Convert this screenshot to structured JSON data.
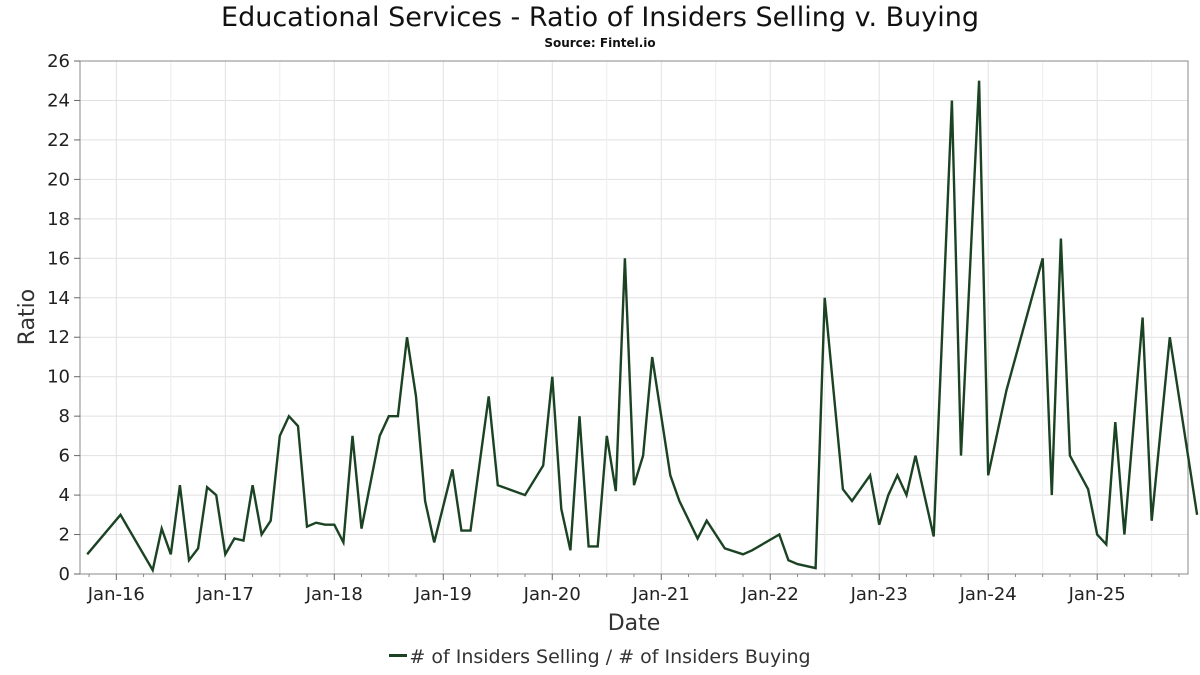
{
  "chart_data": {
    "type": "line",
    "title": "Educational Services - Ratio of Insiders Selling v. Buying",
    "subtitle": "Source: Fintel.io",
    "xlabel": "Date",
    "ylabel": "Ratio",
    "ylim": [
      0,
      26
    ],
    "xlim": [
      "2015-09",
      "2025-11"
    ],
    "y_ticks": [
      0,
      2,
      4,
      6,
      8,
      10,
      12,
      14,
      16,
      18,
      20,
      22,
      24,
      26
    ],
    "x_ticks": [
      {
        "label": "Jan-16",
        "date": "2016-01"
      },
      {
        "label": "Jan-17",
        "date": "2017-01"
      },
      {
        "label": "Jan-18",
        "date": "2018-01"
      },
      {
        "label": "Jan-19",
        "date": "2019-01"
      },
      {
        "label": "Jan-20",
        "date": "2020-01"
      },
      {
        "label": "Jan-21",
        "date": "2021-01"
      },
      {
        "label": "Jan-22",
        "date": "2022-01"
      },
      {
        "label": "Jan-23",
        "date": "2023-01"
      },
      {
        "label": "Jan-24",
        "date": "2024-01"
      },
      {
        "label": "Jan-25",
        "date": "2025-01"
      }
    ],
    "grid": true,
    "legend_position": "bottom",
    "color": "#1b4323",
    "series": [
      {
        "name": "# of Insiders Selling / # of Insiders Buying",
        "points": [
          [
            "2015-09-25",
            1.0
          ],
          [
            "2016-01-15",
            3.0
          ],
          [
            "2016-05-01",
            0.2
          ],
          [
            "2016-06-01",
            2.3
          ],
          [
            "2016-07-01",
            1.0
          ],
          [
            "2016-08-01",
            4.5
          ],
          [
            "2016-09-01",
            0.7
          ],
          [
            "2016-10-01",
            1.3
          ],
          [
            "2016-11-01",
            4.4
          ],
          [
            "2016-12-01",
            4.0
          ],
          [
            "2017-01-01",
            1.0
          ],
          [
            "2017-02-01",
            1.8
          ],
          [
            "2017-03-01",
            1.7
          ],
          [
            "2017-04-01",
            4.5
          ],
          [
            "2017-05-01",
            2.0
          ],
          [
            "2017-06-01",
            2.7
          ],
          [
            "2017-07-01",
            7.0
          ],
          [
            "2017-08-01",
            8.0
          ],
          [
            "2017-09-01",
            7.5
          ],
          [
            "2017-10-01",
            2.4
          ],
          [
            "2017-11-01",
            2.6
          ],
          [
            "2017-12-01",
            2.5
          ],
          [
            "2018-01-01",
            2.5
          ],
          [
            "2018-02-01",
            1.6
          ],
          [
            "2018-03-01",
            7.0
          ],
          [
            "2018-04-01",
            2.3
          ],
          [
            "2018-06-01",
            7.0
          ],
          [
            "2018-07-01",
            8.0
          ],
          [
            "2018-08-01",
            8.0
          ],
          [
            "2018-09-01",
            12.0
          ],
          [
            "2018-10-01",
            9.0
          ],
          [
            "2018-11-01",
            3.7
          ],
          [
            "2018-12-01",
            1.6
          ],
          [
            "2019-02-01",
            5.3
          ],
          [
            "2019-03-01",
            2.2
          ],
          [
            "2019-04-01",
            2.2
          ],
          [
            "2019-06-01",
            9.0
          ],
          [
            "2019-07-01",
            4.5
          ],
          [
            "2019-10-01",
            4.0
          ],
          [
            "2019-12-01",
            5.5
          ],
          [
            "2020-01-01",
            10.0
          ],
          [
            "2020-02-01",
            3.3
          ],
          [
            "2020-03-01",
            1.2
          ],
          [
            "2020-04-01",
            8.0
          ],
          [
            "2020-05-01",
            1.4
          ],
          [
            "2020-06-01",
            1.4
          ],
          [
            "2020-07-01",
            7.0
          ],
          [
            "2020-08-01",
            4.2
          ],
          [
            "2020-09-01",
            16.0
          ],
          [
            "2020-10-01",
            4.5
          ],
          [
            "2020-11-01",
            6.0
          ],
          [
            "2020-12-01",
            11.0
          ],
          [
            "2021-02-01",
            5.0
          ],
          [
            "2021-03-01",
            3.7
          ],
          [
            "2021-05-01",
            1.8
          ],
          [
            "2021-06-01",
            2.7
          ],
          [
            "2021-08-01",
            1.3
          ],
          [
            "2021-10-01",
            1.0
          ],
          [
            "2021-11-01",
            1.2
          ],
          [
            "2022-02-01",
            2.0
          ],
          [
            "2022-03-01",
            0.7
          ],
          [
            "2022-04-01",
            0.5
          ],
          [
            "2022-06-01",
            0.3
          ],
          [
            "2022-07-01",
            14.0
          ],
          [
            "2022-09-01",
            4.3
          ],
          [
            "2022-10-01",
            3.7
          ],
          [
            "2022-12-01",
            5.0
          ],
          [
            "2023-01-01",
            2.5
          ],
          [
            "2023-02-01",
            4.0
          ],
          [
            "2023-03-01",
            5.0
          ],
          [
            "2023-04-01",
            4.0
          ],
          [
            "2023-05-01",
            6.0
          ],
          [
            "2023-07-01",
            1.9
          ],
          [
            "2023-09-01",
            24.0
          ],
          [
            "2023-10-01",
            6.0
          ],
          [
            "2023-12-01",
            25.0
          ],
          [
            "2024-01-01",
            5.0
          ],
          [
            "2024-03-01",
            9.3
          ],
          [
            "2024-07-01",
            16.0
          ],
          [
            "2024-08-01",
            4.0
          ],
          [
            "2024-09-01",
            17.0
          ],
          [
            "2024-10-01",
            6.0
          ],
          [
            "2024-12-01",
            4.3
          ],
          [
            "2025-01-01",
            2.0
          ],
          [
            "2025-02-01",
            1.5
          ],
          [
            "2025-03-01",
            7.7
          ],
          [
            "2025-04-01",
            2.0
          ],
          [
            "2025-06-01",
            13.0
          ],
          [
            "2025-07-01",
            2.7
          ],
          [
            "2025-09-01",
            12.0
          ],
          [
            "2025-12-01",
            3.0
          ]
        ]
      }
    ]
  }
}
